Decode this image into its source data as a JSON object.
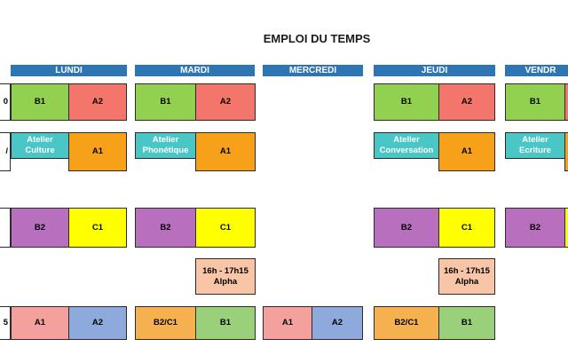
{
  "title": "EMPLOI DU TEMPS",
  "days": [
    "LUNDI",
    "MARDI",
    "MERCREDI",
    "JEUDI",
    "VENDR"
  ],
  "row_labels": [
    "0",
    "/",
    "5"
  ],
  "row1": {
    "lundi": [
      "B1",
      "A2"
    ],
    "mardi": [
      "B1",
      "A2"
    ],
    "jeudi": [
      "B1",
      "A2"
    ],
    "vendredi": [
      "B1"
    ]
  },
  "row2": {
    "lundi_atelier": [
      "Atelier",
      "Culture"
    ],
    "lundi_level": "A1",
    "mardi_atelier": [
      "Atelier",
      "Phonétique"
    ],
    "mardi_level": "A1",
    "jeudi_atelier": [
      "Atelier",
      "Conversation"
    ],
    "jeudi_level": "A1",
    "vendredi_atelier": [
      "Atelier",
      "Ecriture"
    ]
  },
  "row3": {
    "lundi": [
      "B2",
      "C1"
    ],
    "mardi": [
      "B2",
      "C1"
    ],
    "jeudi": [
      "B2",
      "C1"
    ],
    "vendredi": [
      "B2"
    ]
  },
  "row4": {
    "mardi": [
      "16h - 17h15",
      "Alpha"
    ],
    "jeudi": [
      "16h - 17h15",
      "Alpha"
    ]
  },
  "row5": {
    "lundi": [
      "A1",
      "A2"
    ],
    "mardi": [
      "B2/C1",
      "B1"
    ],
    "mercredi": [
      "A1",
      "A2"
    ],
    "jeudi": [
      "B2/C1",
      "B1"
    ]
  }
}
